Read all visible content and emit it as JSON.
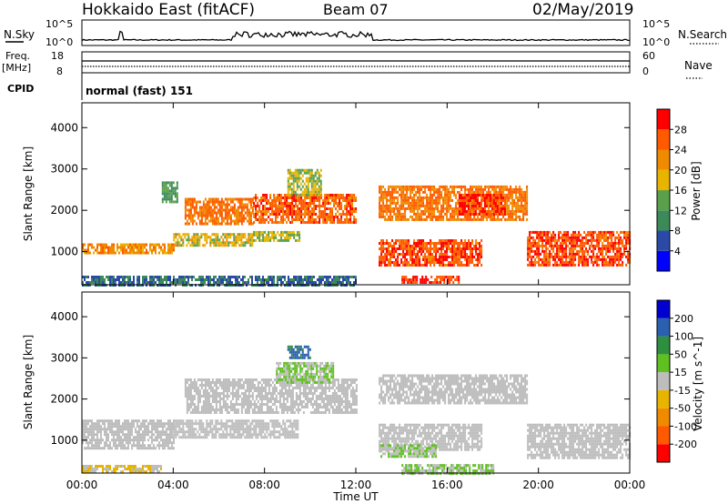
{
  "header": {
    "station": "Hokkaido East (fitACF)",
    "beam": "Beam 07",
    "date": "02/May/2019"
  },
  "top_panels": {
    "nsky_label": "N.Sky",
    "nsky_ticks": [
      "10^5",
      "10^0"
    ],
    "nsearch_label": "N.Search",
    "nsearch_ticks": [
      "10^5",
      "10^0"
    ],
    "freq_label_1": "Freq.",
    "freq_label_2": "[MHz]",
    "freq_ticks": [
      "18",
      "8"
    ],
    "nave_label": "Nave",
    "nave_ticks": [
      "60",
      "0"
    ],
    "cpid_label": "CPID",
    "cpid_text": "normal (fast) 151"
  },
  "colors": {
    "power_scale": [
      "#0000ff",
      "#2b4aa8",
      "#3c8a5a",
      "#5aa04a",
      "#e8b400",
      "#f08a00",
      "#ff5a00",
      "#ff0000"
    ],
    "velocity_scale": [
      "#ff0000",
      "#ff5a00",
      "#f08a00",
      "#e8b400",
      "#bdbdbd",
      "#60c020",
      "#2f8f40",
      "#2b5fb0",
      "#0000d0"
    ],
    "ground_scatter": "#bdbdbd"
  },
  "chart_data": [
    {
      "type": "heatmap",
      "ylabel": "Slant Range [km]",
      "xlabel": "Time UT",
      "x_ticks": [
        "00:00",
        "04:00",
        "08:00",
        "12:00",
        "16:00",
        "20:00",
        "00:00"
      ],
      "y_ticks": [
        "1000",
        "2000",
        "3000",
        "4000"
      ],
      "ylim": [
        200,
        4600
      ],
      "xlim_hours": [
        0,
        24
      ],
      "colorbar_label": "Power [dB]",
      "colorbar_ticks": [
        "4",
        "8",
        "12",
        "16",
        "20",
        "24",
        "28"
      ],
      "colorbar_range": [
        0,
        32
      ],
      "regions": [
        {
          "t0": 0.0,
          "t1": 4.0,
          "r0": 1000,
          "r1": 1200,
          "v": 22
        },
        {
          "t0": 4.0,
          "t1": 7.5,
          "r0": 1150,
          "r1": 1450,
          "v": 18
        },
        {
          "t0": 7.5,
          "t1": 9.5,
          "r0": 1250,
          "r1": 1500,
          "v": 16
        },
        {
          "t0": 4.5,
          "t1": 7.5,
          "r0": 1700,
          "r1": 2300,
          "v": 24
        },
        {
          "t0": 7.5,
          "t1": 12.0,
          "r0": 1700,
          "r1": 2400,
          "v": 26
        },
        {
          "t0": 9.0,
          "t1": 10.5,
          "r0": 2400,
          "r1": 3000,
          "v": 16
        },
        {
          "t0": 3.5,
          "t1": 4.2,
          "r0": 2200,
          "r1": 2700,
          "v": 12
        },
        {
          "t0": 13.0,
          "t1": 17.5,
          "r0": 650,
          "r1": 1300,
          "v": 27
        },
        {
          "t0": 13.0,
          "t1": 19.5,
          "r0": 1800,
          "r1": 2600,
          "v": 24
        },
        {
          "t0": 16.5,
          "t1": 18.5,
          "r0": 1900,
          "r1": 2400,
          "v": 29
        },
        {
          "t0": 14.0,
          "t1": 16.5,
          "r0": 250,
          "r1": 420,
          "v": 28
        },
        {
          "t0": 19.5,
          "t1": 24.0,
          "r0": 650,
          "r1": 1500,
          "v": 27
        },
        {
          "t0": 0.0,
          "t1": 12.0,
          "r0": 220,
          "r1": 420,
          "v": 8
        }
      ]
    },
    {
      "type": "heatmap",
      "ylabel": "Slant Range [km]",
      "xlabel": "Time UT",
      "x_ticks": [
        "00:00",
        "04:00",
        "08:00",
        "12:00",
        "16:00",
        "20:00",
        "00:00"
      ],
      "y_ticks": [
        "1000",
        "2000",
        "3000",
        "4000"
      ],
      "ylim": [
        200,
        4600
      ],
      "xlim_hours": [
        0,
        24
      ],
      "colorbar_label": "Velocity [m s^-1]",
      "colorbar_ticks": [
        "-200",
        "-100",
        "-50",
        "-15",
        "15",
        "50",
        "100",
        "200"
      ],
      "colorbar_range": [
        -250,
        250
      ],
      "regions": [
        {
          "t0": 0.0,
          "t1": 4.0,
          "r0": 800,
          "r1": 1500,
          "v": 0,
          "gs": true
        },
        {
          "t0": 4.0,
          "t1": 9.5,
          "r0": 1100,
          "r1": 1500,
          "v": 0,
          "gs": true
        },
        {
          "t0": 4.5,
          "t1": 12.0,
          "r0": 1700,
          "r1": 2500,
          "v": 0,
          "gs": true
        },
        {
          "t0": 8.5,
          "t1": 11.0,
          "r0": 2400,
          "r1": 2900,
          "v": 30
        },
        {
          "t0": 9.0,
          "t1": 10.0,
          "r0": 3000,
          "r1": 3300,
          "v": 150
        },
        {
          "t0": 13.0,
          "t1": 19.5,
          "r0": 1900,
          "r1": 2600,
          "v": 0,
          "gs": true
        },
        {
          "t0": 13.0,
          "t1": 17.5,
          "r0": 800,
          "r1": 1400,
          "v": 0,
          "gs": true
        },
        {
          "t0": 13.0,
          "t1": 15.5,
          "r0": 600,
          "r1": 900,
          "v": 30
        },
        {
          "t0": 19.5,
          "t1": 24.0,
          "r0": 600,
          "r1": 1400,
          "v": 0,
          "gs": true
        },
        {
          "t0": 0.0,
          "t1": 3.5,
          "r0": 220,
          "r1": 400,
          "v": -30
        },
        {
          "t0": 14.0,
          "t1": 18.0,
          "r0": 220,
          "r1": 420,
          "v": 30
        }
      ]
    }
  ]
}
